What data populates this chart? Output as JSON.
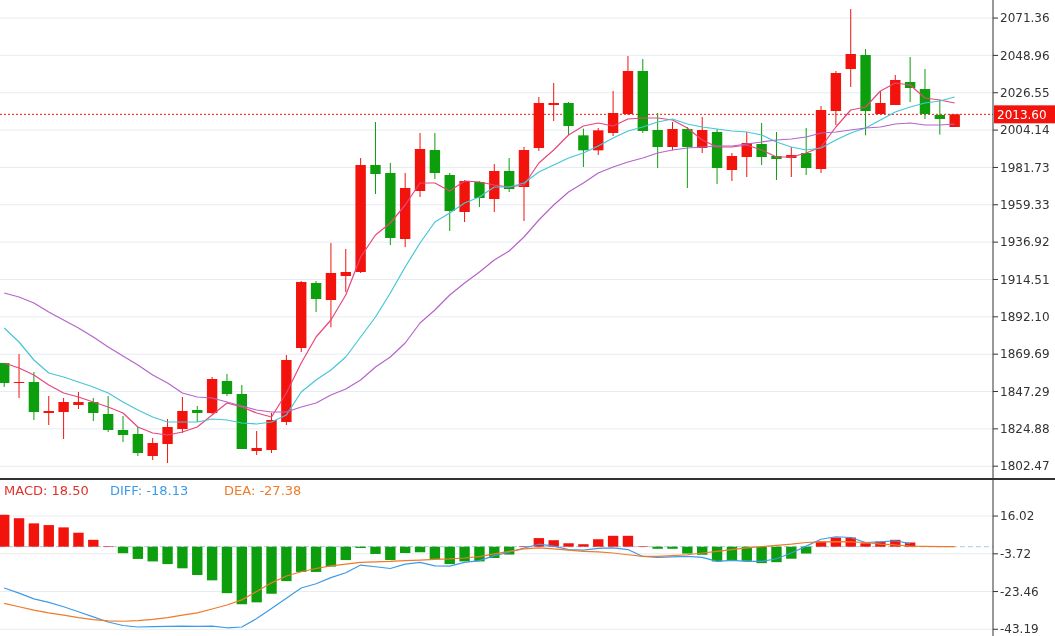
{
  "chart_data": [
    {
      "type": "candlestick",
      "categories": [
        null,
        null,
        null,
        null,
        null,
        null,
        null,
        null,
        null,
        null,
        null,
        null,
        null,
        null,
        null,
        null,
        null,
        null,
        null,
        null,
        null,
        null,
        null,
        null,
        null,
        null,
        null,
        null,
        null,
        null,
        null,
        null,
        null,
        null,
        null,
        null,
        null,
        null,
        null,
        null,
        null,
        null,
        null,
        null,
        null,
        null,
        null,
        null,
        null,
        null,
        null,
        null,
        null,
        null,
        null,
        null,
        null,
        null,
        null,
        null,
        null,
        null,
        null,
        null,
        null
      ],
      "ohlc": [
        [
          1864.4,
          1864.4,
          1850.0,
          1852.4
        ],
        [
          1852.4,
          1869.8,
          1843.4,
          1853.0
        ],
        [
          1853.0,
          1859.0,
          1830.2,
          1835.0
        ],
        [
          1834.4,
          1844.6,
          1827.2,
          1835.6
        ],
        [
          1835.0,
          1843.4,
          1818.8,
          1841.0
        ],
        [
          1839.2,
          1847.0,
          1836.8,
          1841.0
        ],
        [
          1841.0,
          1843.4,
          1829.6,
          1834.4
        ],
        [
          1833.8,
          1844.6,
          1823.0,
          1824.2
        ],
        [
          1824.2,
          1832.6,
          1817.0,
          1821.2
        ],
        [
          1821.8,
          1826.0,
          1808.6,
          1810.4
        ],
        [
          1808.6,
          1819.4,
          1806.2,
          1816.4
        ],
        [
          1815.8,
          1830.8,
          1804.4,
          1826.0
        ],
        [
          1824.8,
          1844.0,
          1822.4,
          1835.6
        ],
        [
          1836.2,
          1838.6,
          1829.0,
          1834.4
        ],
        [
          1834.4,
          1856.0,
          1833.8,
          1854.8
        ],
        [
          1853.6,
          1857.8,
          1844.6,
          1845.8
        ],
        [
          1845.8,
          1851.2,
          1812.8,
          1812.8
        ],
        [
          1811.6,
          1823.6,
          1809.2,
          1813.4
        ],
        [
          1812.2,
          1834.4,
          1810.4,
          1830.2
        ],
        [
          1829.0,
          1869.2,
          1827.2,
          1866.2
        ],
        [
          1873.4,
          1913.6,
          1871.0,
          1913.0
        ],
        [
          1912.4,
          1913.6,
          1895.0,
          1902.8
        ],
        [
          1902.2,
          1936.4,
          1885.8,
          1918.4
        ],
        [
          1916.6,
          1932.8,
          1907.0,
          1919.0
        ],
        [
          1919.0,
          1987.4,
          1918.4,
          1983.2
        ],
        [
          1983.2,
          2009.0,
          1965.8,
          1977.8
        ],
        [
          1978.4,
          1984.4,
          1935.2,
          1939.4
        ],
        [
          1938.8,
          1978.4,
          1933.9,
          1969.4
        ],
        [
          1967.6,
          2002.4,
          1964.0,
          1992.8
        ],
        [
          1992.2,
          2002.4,
          1974.8,
          1978.4
        ],
        [
          1977.2,
          1978.4,
          1943.6,
          1955.6
        ],
        [
          1955.0,
          1974.2,
          1949.0,
          1973.6
        ],
        [
          1973.0,
          1973.6,
          1958.0,
          1963.4
        ],
        [
          1962.8,
          1983.8,
          1955.0,
          1979.6
        ],
        [
          1979.6,
          1987.4,
          1967.0,
          1968.8
        ],
        [
          1970.0,
          1994.0,
          1949.6,
          1992.2
        ],
        [
          1993.4,
          2024.0,
          1991.6,
          2020.4
        ],
        [
          2019.2,
          2032.4,
          2009.6,
          2020.4
        ],
        [
          2020.4,
          2021.0,
          2001.0,
          2006.6
        ],
        [
          2001.0,
          2005.0,
          1982.0,
          1992.0
        ],
        [
          1992.0,
          2005.4,
          1989.2,
          2004.0
        ],
        [
          2002.4,
          2027.6,
          2000.6,
          2014.4
        ],
        [
          2013.8,
          2048.6,
          2013.2,
          2039.6
        ],
        [
          2039.6,
          2046.8,
          2002.4,
          2003.6
        ],
        [
          2004.2,
          2014.4,
          1981.4,
          1994.0
        ],
        [
          1994.0,
          2009.0,
          1992.0,
          2004.8
        ],
        [
          2004.8,
          2006.0,
          1969.4,
          1994.0
        ],
        [
          1993.4,
          2012.0,
          1990.4,
          2004.2
        ],
        [
          2003.0,
          2004.8,
          1971.8,
          1981.4
        ],
        [
          1980.2,
          1990.4,
          1973.6,
          1988.6
        ],
        [
          1988.0,
          2003.0,
          1976.0,
          1996.4
        ],
        [
          1995.8,
          2008.4,
          1983.2,
          1988.0
        ],
        [
          1988.6,
          2003.0,
          1974.2,
          1986.8
        ],
        [
          1987.4,
          1994.0,
          1976.0,
          1989.2
        ],
        [
          1990.4,
          2005.4,
          1977.2,
          1981.4
        ],
        [
          1980.8,
          2018.6,
          1978.4,
          2016.2
        ],
        [
          2015.6,
          2039.6,
          2007.2,
          2038.4
        ],
        [
          2040.8,
          2076.8,
          2030.0,
          2049.8
        ],
        [
          2049.2,
          2052.8,
          2001.0,
          2015.6
        ],
        [
          2013.8,
          2027.6,
          2013.8,
          2020.4
        ],
        [
          2019.2,
          2037.2,
          2019.2,
          2034.2
        ],
        [
          2033.0,
          2048.0,
          2021.0,
          2029.4
        ],
        [
          2028.8,
          2040.8,
          2010.8,
          2013.8
        ],
        [
          2013.2,
          2022.4,
          2001.4,
          2010.8
        ],
        [
          2006.0,
          2013.6,
          2006.0,
          2013.6
        ]
      ],
      "colors": [
        "#0d9e0d",
        "#f2140c",
        "#0d9e0d",
        "#f2140c",
        "#f2140c",
        "#f2140c",
        "#0d9e0d",
        "#0d9e0d",
        "#0d9e0d",
        "#0d9e0d",
        "#f2140c",
        "#f2140c",
        "#f2140c",
        "#0d9e0d",
        "#f2140c",
        "#0d9e0d",
        "#0d9e0d",
        "#f2140c",
        "#f2140c",
        "#f2140c",
        "#f2140c",
        "#0d9e0d",
        "#f2140c",
        "#f2140c",
        "#f2140c",
        "#0d9e0d",
        "#0d9e0d",
        "#f2140c",
        "#f2140c",
        "#0d9e0d",
        "#0d9e0d",
        "#f2140c",
        "#0d9e0d",
        "#f2140c",
        "#0d9e0d",
        "#f2140c",
        "#f2140c",
        "#f2140c",
        "#0d9e0d",
        "#0d9e0d",
        "#f2140c",
        "#f2140c",
        "#f2140c",
        "#0d9e0d",
        "#0d9e0d",
        "#f2140c",
        "#0d9e0d",
        "#f2140c",
        "#0d9e0d",
        "#f2140c",
        "#f2140c",
        "#0d9e0d",
        "#0d9e0d",
        "#f2140c",
        "#0d9e0d",
        "#f2140c",
        "#f2140c",
        "#f2140c",
        "#0d9e0d",
        "#f2140c",
        "#f2140c",
        "#0d9e0d",
        "#0d9e0d",
        "#0d9e0d",
        "#f2140c"
      ],
      "series": [
        {
          "type": "line",
          "color": "#e8467c",
          "values": [
            1864.4,
            1861.4,
            1857.2,
            1851.2,
            1846.4,
            1844.0,
            1841.0,
            1838.0,
            1834.4,
            1826.0,
            1822.4,
            1821.2,
            1823.0,
            1826.0,
            1833.2,
            1840.4,
            1838.0,
            1834.4,
            1832.0,
            1846.4,
            1864.4,
            1880.0,
            1890.2,
            1905.2,
            1928.0,
            1941.2,
            1948.4,
            1959.2,
            1972.4,
            1972.4,
            1967.6,
            1973.6,
            1973.0,
            1971.2,
            1970.0,
            1971.2,
            1984.4,
            1992.2,
            2001.2,
            2006.6,
            2008.4,
            2006.6,
            2010.8,
            2011.4,
            2011.4,
            2010.2,
            2005.4,
            1998.2,
            1994.0,
            1994.0,
            1995.2,
            1992.2,
            1988.0,
            1988.0,
            1990.4,
            1994.0,
            2006.0,
            2016.2,
            2018.0,
            2027.6,
            2032.4,
            2031.2,
            2023.4,
            2022.2,
            2020.4
          ]
        },
        {
          "type": "line",
          "color": "#45c6d6",
          "values": [
            1885.4,
            1877.0,
            1866.2,
            1858.4,
            1856.0,
            1853.0,
            1850.0,
            1846.4,
            1841.0,
            1836.2,
            1832.0,
            1829.0,
            1829.0,
            1829.0,
            1830.8,
            1830.2,
            1828.4,
            1827.8,
            1829.0,
            1833.2,
            1847.0,
            1854.2,
            1860.2,
            1868.0,
            1880.0,
            1892.0,
            1906.4,
            1922.0,
            1936.4,
            1949.0,
            1954.4,
            1960.4,
            1964.0,
            1970.0,
            1970.0,
            1972.4,
            1979.0,
            1983.2,
            1987.4,
            1990.4,
            1994.6,
            1999.4,
            2003.6,
            2006.0,
            2009.0,
            2010.8,
            2007.8,
            2006.0,
            2004.8,
            2003.6,
            2003.0,
            2001.2,
            1997.0,
            1994.0,
            1992.2,
            1993.4,
            1998.2,
            2002.4,
            2005.4,
            2010.2,
            2015.0,
            2018.0,
            2020.4,
            2021.6,
            2024.0
          ]
        },
        {
          "type": "line",
          "color": "#b565c9",
          "values": [
            1906.4,
            1904.0,
            1900.4,
            1895.0,
            1890.2,
            1885.4,
            1880.0,
            1874.0,
            1868.6,
            1863.2,
            1857.2,
            1852.4,
            1846.4,
            1844.0,
            1843.4,
            1841.0,
            1838.6,
            1836.2,
            1835.0,
            1835.0,
            1838.0,
            1840.4,
            1845.2,
            1848.8,
            1854.2,
            1862.0,
            1868.0,
            1876.4,
            1888.4,
            1896.2,
            1905.2,
            1912.4,
            1919.0,
            1926.2,
            1931.6,
            1940.0,
            1950.2,
            1959.2,
            1967.0,
            1972.4,
            1978.4,
            1982.0,
            1985.0,
            1987.4,
            1990.4,
            1992.2,
            1993.4,
            1994.0,
            1994.6,
            1994.6,
            1995.8,
            1997.0,
            1998.2,
            1998.8,
            2000.0,
            2002.4,
            2003.0,
            2004.2,
            2005.4,
            2006.0,
            2007.8,
            2008.4,
            2007.2,
            2007.2,
            2007.8
          ]
        }
      ],
      "ylim": [
        1795.4,
        2082.2
      ],
      "yticks": [
        1802.47,
        1824.88,
        1847.29,
        1869.69,
        {
          "value": 1892.1,
          "label": "1892.10"
        },
        1914.51,
        1936.92,
        1959.33,
        1981.73,
        2004.14,
        2026.55,
        2048.96,
        2071.36
      ],
      "grid": "y",
      "ref_lines": [
        {
          "axis": "y",
          "value": 2013.6,
          "label": "2013.60",
          "color": "#f2140c",
          "line_style": "dotted"
        }
      ]
    },
    {
      "type": "bar",
      "categories": [
        null,
        null,
        null,
        null,
        null,
        null,
        null,
        null,
        null,
        null,
        null,
        null,
        null,
        null,
        null,
        null,
        null,
        null,
        null,
        null,
        null,
        null,
        null,
        null,
        null,
        null,
        null,
        null,
        null,
        null,
        null,
        null,
        null,
        null,
        null,
        null,
        null,
        null,
        null,
        null,
        null,
        null,
        null,
        null,
        null,
        null,
        null,
        null,
        null,
        null,
        null,
        null,
        null,
        null,
        null,
        null,
        null,
        null,
        null,
        null,
        null,
        null,
        null,
        null,
        null
      ],
      "series": [
        {
          "name": "MACD: 18.50",
          "type": "bar",
          "color": "#e0312b",
          "values": [
            16.7,
            14.9,
            12.2,
            11.3,
            10.1,
            7.3,
            3.6,
            0.3,
            -3.4,
            -6.4,
            -7.7,
            -9.1,
            -11.3,
            -14.8,
            -17.6,
            -24.3,
            -30.1,
            -29.1,
            -24.6,
            -18.0,
            -13.2,
            -13.2,
            -10.4,
            -7.0,
            -0.7,
            -3.8,
            -7.0,
            -3.3,
            -2.9,
            -6.4,
            -9.1,
            -7.7,
            -7.7,
            -5.9,
            -4.1,
            0.3,
            4.5,
            3.4,
            1.8,
            1.3,
            3.9,
            5.7,
            5.7,
            0.3,
            -1.1,
            -1.1,
            -3.6,
            -4.2,
            -7.7,
            -7.4,
            -7.4,
            -8.6,
            -8.1,
            -6.3,
            -3.6,
            2.7,
            4.8,
            4.8,
            1.8,
            2.7,
            3.6,
            2.2,
            null,
            null,
            null
          ],
          "colors": [
            "#f2140c",
            "#f2140c",
            "#f2140c",
            "#f2140c",
            "#f2140c",
            "#f2140c",
            "#f2140c",
            "#f2140c",
            "#0d9e0d",
            "#0d9e0d",
            "#0d9e0d",
            "#0d9e0d",
            "#0d9e0d",
            "#0d9e0d",
            "#0d9e0d",
            "#0d9e0d",
            "#0d9e0d",
            "#0d9e0d",
            "#0d9e0d",
            "#0d9e0d",
            "#0d9e0d",
            "#0d9e0d",
            "#0d9e0d",
            "#0d9e0d",
            "#0d9e0d",
            "#0d9e0d",
            "#0d9e0d",
            "#0d9e0d",
            "#0d9e0d",
            "#0d9e0d",
            "#0d9e0d",
            "#0d9e0d",
            "#0d9e0d",
            "#0d9e0d",
            "#0d9e0d",
            "#f2140c",
            "#f2140c",
            "#f2140c",
            "#f2140c",
            "#f2140c",
            "#f2140c",
            "#f2140c",
            "#f2140c",
            "#f2140c",
            "#0d9e0d",
            "#0d9e0d",
            "#0d9e0d",
            "#0d9e0d",
            "#0d9e0d",
            "#0d9e0d",
            "#0d9e0d",
            "#0d9e0d",
            "#0d9e0d",
            "#0d9e0d",
            "#0d9e0d",
            "#f2140c",
            "#f2140c",
            "#f2140c",
            "#f2140c",
            "#f2140c",
            "#f2140c",
            "#f2140c",
            "#f2140c",
            "#f2140c",
            "#f2140c"
          ]
        },
        {
          "name": "DIFF: -18.13",
          "type": "line",
          "color": "#3d9be9",
          "values": [
            -21.6,
            -24.3,
            -27.3,
            -29.1,
            -31.4,
            -34.0,
            -36.7,
            -39.4,
            -41.2,
            -42.0,
            -41.8,
            -41.7,
            -41.5,
            -41.7,
            -41.5,
            -42.4,
            -42.0,
            -37.6,
            -32.3,
            -26.9,
            -21.6,
            -19.4,
            -16.2,
            -13.6,
            -9.6,
            -10.5,
            -11.4,
            -9.1,
            -8.2,
            -10.0,
            -10.2,
            -8.2,
            -7.3,
            -4.7,
            -2.9,
            -0.7,
            1.3,
            0.3,
            -1.5,
            -1.8,
            -0.9,
            -0.6,
            -1.5,
            -5.1,
            -5.6,
            -5.3,
            -5.1,
            -5.6,
            -7.7,
            -7.2,
            -7.7,
            -7.7,
            -6.3,
            -3.3,
            0.3,
            3.9,
            5.2,
            4.8,
            2.2,
            2.5,
            3.1,
            1.6,
            null,
            null,
            null
          ]
        },
        {
          "name": "DEA: -27.38",
          "type": "line",
          "color": "#ef7b2a",
          "values": [
            -29.6,
            -31.4,
            -33.2,
            -34.6,
            -35.8,
            -37.1,
            -38.1,
            -38.8,
            -39.0,
            -38.7,
            -38.0,
            -37.1,
            -35.8,
            -34.6,
            -32.6,
            -30.5,
            -27.8,
            -23.4,
            -18.9,
            -15.3,
            -13.1,
            -11.4,
            -10.0,
            -9.1,
            -8.2,
            -7.9,
            -7.7,
            -7.3,
            -7.0,
            -6.6,
            -6.4,
            -5.9,
            -5.2,
            -3.8,
            -2.4,
            -1.1,
            -0.6,
            -1.1,
            -1.8,
            -2.4,
            -2.7,
            -3.3,
            -4.2,
            -5.1,
            -5.1,
            -4.7,
            -4.2,
            -3.3,
            -2.4,
            -1.5,
            -0.6,
            0.0,
            0.7,
            1.3,
            2.2,
            2.5,
            2.7,
            2.5,
            2.2,
            1.3,
            0.9,
            0.3,
            0.2,
            0.0,
            0.0
          ]
        }
      ],
      "ylim": [
        -46.7,
        35.4
      ],
      "yticks": [
        16.02,
        -3.72,
        -23.46,
        -43.19
      ],
      "grid": "y",
      "legend": "top left",
      "ref_lines": [
        {
          "axis": "y",
          "value": 0,
          "color": "#a8cbe0",
          "line_style": "dashed"
        }
      ]
    }
  ]
}
